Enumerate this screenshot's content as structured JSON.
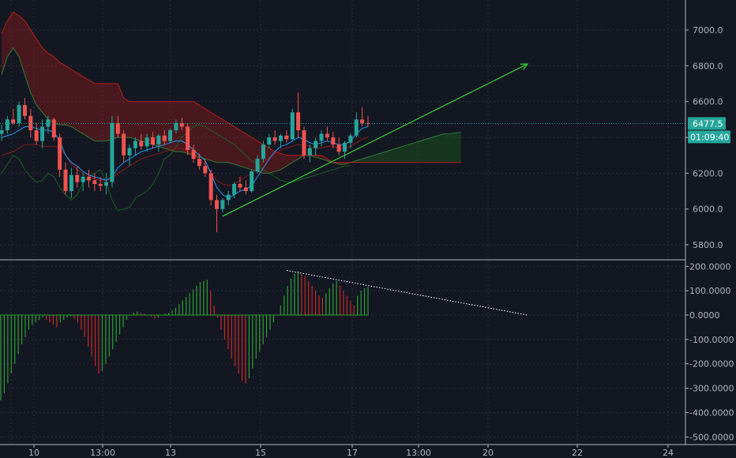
{
  "chart_data": [
    {
      "type": "candlestick",
      "title": "",
      "y_axis": {
        "ticks": [
          "7000.0",
          "6800.0",
          "6600.0",
          "6400.0",
          "6200.0",
          "6000.0",
          "5800.0"
        ],
        "ylim": [
          5760,
          7080
        ]
      },
      "x_axis": {
        "ticks": [
          "10",
          "13:00",
          "13",
          "15",
          "13:00",
          "17",
          "13:00",
          "20",
          "22",
          "24"
        ]
      },
      "last_price": "6477.5",
      "countdown": "01:09:40",
      "colors": {
        "up": "#26a69a",
        "down": "#ef5350",
        "cloud_bear": "#8b1a1a",
        "cloud_bull": "#1b5e20",
        "arrow": "#33cc33",
        "conversion": "#2196f3"
      },
      "series": [
        {
          "name": "",
          "kind": "candles",
          "ohlc": [
            [
              6420,
              6470,
              6380,
              6440
            ],
            [
              6440,
              6520,
              6420,
              6500
            ],
            [
              6500,
              6560,
              6470,
              6480
            ],
            [
              6480,
              6600,
              6460,
              6580
            ],
            [
              6580,
              6620,
              6500,
              6520
            ],
            [
              6520,
              6560,
              6400,
              6440
            ],
            [
              6440,
              6480,
              6360,
              6380
            ],
            [
              6380,
              6500,
              6340,
              6460
            ],
            [
              6460,
              6520,
              6420,
              6500
            ],
            [
              6500,
              6510,
              6380,
              6400
            ],
            [
              6400,
              6420,
              6180,
              6220
            ],
            [
              6220,
              6260,
              6080,
              6100
            ],
            [
              6100,
              6230,
              6060,
              6190
            ],
            [
              6190,
              6240,
              6120,
              6150
            ],
            [
              6150,
              6200,
              6100,
              6180
            ],
            [
              6180,
              6220,
              6120,
              6160
            ],
            [
              6160,
              6200,
              6100,
              6140
            ],
            [
              6140,
              6180,
              6100,
              6130
            ],
            [
              6130,
              6200,
              6080,
              6150
            ],
            [
              6150,
              6520,
              6120,
              6480
            ],
            [
              6480,
              6520,
              6400,
              6420
            ],
            [
              6420,
              6440,
              6260,
              6300
            ],
            [
              6300,
              6360,
              6240,
              6340
            ],
            [
              6340,
              6400,
              6300,
              6380
            ],
            [
              6380,
              6420,
              6330,
              6350
            ],
            [
              6350,
              6420,
              6320,
              6400
            ],
            [
              6400,
              6430,
              6340,
              6360
            ],
            [
              6360,
              6420,
              6320,
              6410
            ],
            [
              6410,
              6440,
              6360,
              6380
            ],
            [
              6380,
              6450,
              6370,
              6440
            ],
            [
              6440,
              6500,
              6420,
              6480
            ],
            [
              6480,
              6510,
              6440,
              6460
            ],
            [
              6460,
              6480,
              6300,
              6330
            ],
            [
              6330,
              6360,
              6260,
              6280
            ],
            [
              6280,
              6310,
              6220,
              6240
            ],
            [
              6240,
              6280,
              6180,
              6200
            ],
            [
              6200,
              6220,
              6020,
              6050
            ],
            [
              6050,
              6080,
              5870,
              6000
            ],
            [
              6000,
              6060,
              5980,
              6050
            ],
            [
              6050,
              6100,
              6020,
              6080
            ],
            [
              6080,
              6150,
              6060,
              6140
            ],
            [
              6140,
              6180,
              6100,
              6120
            ],
            [
              6120,
              6160,
              6080,
              6100
            ],
            [
              6100,
              6220,
              6090,
              6210
            ],
            [
              6210,
              6300,
              6200,
              6280
            ],
            [
              6280,
              6380,
              6260,
              6360
            ],
            [
              6360,
              6420,
              6340,
              6400
            ],
            [
              6400,
              6440,
              6360,
              6380
            ],
            [
              6380,
              6420,
              6340,
              6410
            ],
            [
              6410,
              6440,
              6370,
              6390
            ],
            [
              6390,
              6560,
              6380,
              6540
            ],
            [
              6540,
              6650,
              6400,
              6440
            ],
            [
              6440,
              6460,
              6280,
              6300
            ],
            [
              6300,
              6360,
              6260,
              6340
            ],
            [
              6340,
              6400,
              6300,
              6380
            ],
            [
              6380,
              6440,
              6350,
              6420
            ],
            [
              6420,
              6460,
              6380,
              6400
            ],
            [
              6400,
              6430,
              6340,
              6360
            ],
            [
              6360,
              6400,
              6300,
              6320
            ],
            [
              6320,
              6380,
              6280,
              6370
            ],
            [
              6370,
              6420,
              6340,
              6410
            ],
            [
              6410,
              6540,
              6400,
              6500
            ],
            [
              6500,
              6570,
              6460,
              6480
            ],
            [
              6480,
              6520,
              6460,
              6477.5
            ]
          ]
        },
        {
          "name": "",
          "kind": "line",
          "role": "conversion",
          "values": [
            6400,
            6410,
            6420,
            6440,
            6460,
            6460,
            6450,
            6440,
            6440,
            6430,
            6380,
            6300,
            6260,
            6240,
            6210,
            6190,
            6180,
            6170,
            6160,
            6180,
            6230,
            6260,
            6280,
            6300,
            6320,
            6330,
            6340,
            6350,
            6360,
            6370,
            6380,
            6380,
            6360,
            6330,
            6300,
            6270,
            6200,
            6120,
            6080,
            6060,
            6080,
            6100,
            6110,
            6130,
            6180,
            6230,
            6280,
            6320,
            6350,
            6360,
            6380,
            6400,
            6390,
            6370,
            6360,
            6370,
            6380,
            6370,
            6360,
            6360,
            6380,
            6420,
            6450,
            6460
          ]
        },
        {
          "name": "",
          "kind": "line",
          "role": "base",
          "values": [
            6300,
            6310,
            6320,
            6340,
            6360,
            6360,
            6360,
            6350,
            6350,
            6350,
            6340,
            6300,
            6250,
            6220,
            6200,
            6180,
            6170,
            6160,
            6160,
            6170,
            6200,
            6220,
            6240,
            6260,
            6280,
            6290,
            6300,
            6310,
            6320,
            6330,
            6340,
            6340,
            6320,
            6300,
            6280,
            6250,
            6200,
            6160,
            6140,
            6130,
            6140,
            6160,
            6180,
            6200,
            6230,
            6260,
            6290,
            6310,
            6330,
            6340,
            6350,
            6360,
            6360,
            6350,
            6340,
            6340,
            6350,
            6350,
            6340,
            6340,
            6350,
            6370,
            6390,
            6400
          ]
        },
        {
          "name": "",
          "kind": "cloud",
          "span_a": [
            6750,
            6850,
            6900,
            6850,
            6750,
            6650,
            6580,
            6540,
            6500,
            6480,
            6470,
            6470,
            6460,
            6440,
            6420,
            6400,
            6380,
            6380,
            6380,
            6390,
            6400,
            6400,
            6400,
            6390,
            6380,
            6370,
            6360,
            6350,
            6340,
            6330,
            6320,
            6320,
            6310,
            6300,
            6290,
            6280,
            6270,
            6260,
            6260,
            6260,
            6250,
            6240,
            6230,
            6220,
            6210,
            6200,
            6200,
            6210,
            6220,
            6240,
            6260,
            6280,
            6300,
            6300,
            6290,
            6280,
            6270,
            6260,
            6250,
            6250,
            6260,
            6270,
            6280,
            6290,
            6300,
            6310,
            6320,
            6330,
            6340,
            6350,
            6360,
            6370,
            6380,
            6390,
            6400,
            6410,
            6420,
            6420,
            6425,
            6430
          ],
          "span_b": [
            6980,
            7050,
            7100,
            7080,
            7050,
            7000,
            6950,
            6900,
            6870,
            6850,
            6820,
            6800,
            6780,
            6760,
            6740,
            6720,
            6700,
            6700,
            6700,
            6700,
            6700,
            6620,
            6600,
            6600,
            6600,
            6600,
            6600,
            6600,
            6600,
            6600,
            6600,
            6600,
            6600,
            6600,
            6580,
            6560,
            6540,
            6520,
            6500,
            6480,
            6460,
            6440,
            6420,
            6400,
            6380,
            6360,
            6340,
            6320,
            6310,
            6300,
            6300,
            6300,
            6300,
            6300,
            6300,
            6300,
            6280,
            6260,
            6260,
            6260,
            6260,
            6260,
            6260,
            6260,
            6260,
            6260,
            6260,
            6260,
            6260,
            6260,
            6260,
            6260,
            6260,
            6260,
            6260,
            6260,
            6260,
            6260,
            6260,
            6260
          ]
        },
        {
          "name": "",
          "kind": "line",
          "role": "lagging",
          "values": [
            6200,
            6250,
            6300,
            6280,
            6220,
            6180,
            6150,
            6160,
            6200,
            6180,
            6120,
            6080,
            6050,
            6080,
            6150,
            6180,
            6200,
            6220,
            6150,
            6050,
            5990,
            6000,
            6010,
            6060,
            6080,
            6100,
            6140,
            6200,
            6280,
            6300,
            6350,
            6400,
            6430,
            6460,
            6470,
            6460,
            6440,
            6420,
            6400,
            6380,
            6360,
            6330,
            6300,
            6270,
            6250,
            6220,
            6200,
            6180,
            6160,
            6150,
            6150,
            6160,
            6170,
            6180,
            6190,
            6200,
            6210,
            6220,
            6230,
            6240,
            6240
          ]
        }
      ],
      "annotations": [
        {
          "kind": "arrow",
          "from_value": 5960,
          "to_value": 6810,
          "from_time": "14",
          "to_time": "20"
        }
      ]
    },
    {
      "type": "histogram",
      "title": "",
      "y_axis": {
        "ticks": [
          "200.0000",
          "100.0000",
          "0.0000",
          "-100.0000",
          "-200.0000",
          "-300.0000",
          "-400.0000",
          "-500.0000"
        ],
        "ylim": [
          -520,
          220
        ]
      },
      "series": [
        {
          "name": "",
          "values": [
            -350,
            -320,
            -280,
            -240,
            -200,
            -160,
            -120,
            -90,
            -60,
            -40,
            -30,
            -20,
            -10,
            -20,
            -30,
            -40,
            -50,
            -30,
            -20,
            -10,
            -5,
            -15,
            -30,
            -60,
            -90,
            -130,
            -170,
            -210,
            -240,
            -230,
            -200,
            -170,
            -140,
            -110,
            -80,
            -50,
            -20,
            0,
            10,
            15,
            10,
            5,
            0,
            -5,
            -15,
            -10,
            0,
            5,
            10,
            20,
            30,
            45,
            60,
            75,
            90,
            105,
            120,
            135,
            140,
            145,
            100,
            40,
            -10,
            -60,
            -100,
            -140,
            -180,
            -210,
            -240,
            -270,
            -280,
            -260,
            -220,
            -180,
            -150,
            -120,
            -90,
            -60,
            -30,
            0,
            40,
            80,
            120,
            150,
            170,
            180,
            170,
            160,
            140,
            120,
            100,
            80,
            70,
            90,
            110,
            130,
            140,
            120,
            100,
            80,
            60,
            40,
            80,
            100,
            110,
            115
          ]
        }
      ],
      "annotations": [
        {
          "kind": "dotted_trendline",
          "from_value": 180,
          "to_value": 0
        }
      ]
    }
  ]
}
